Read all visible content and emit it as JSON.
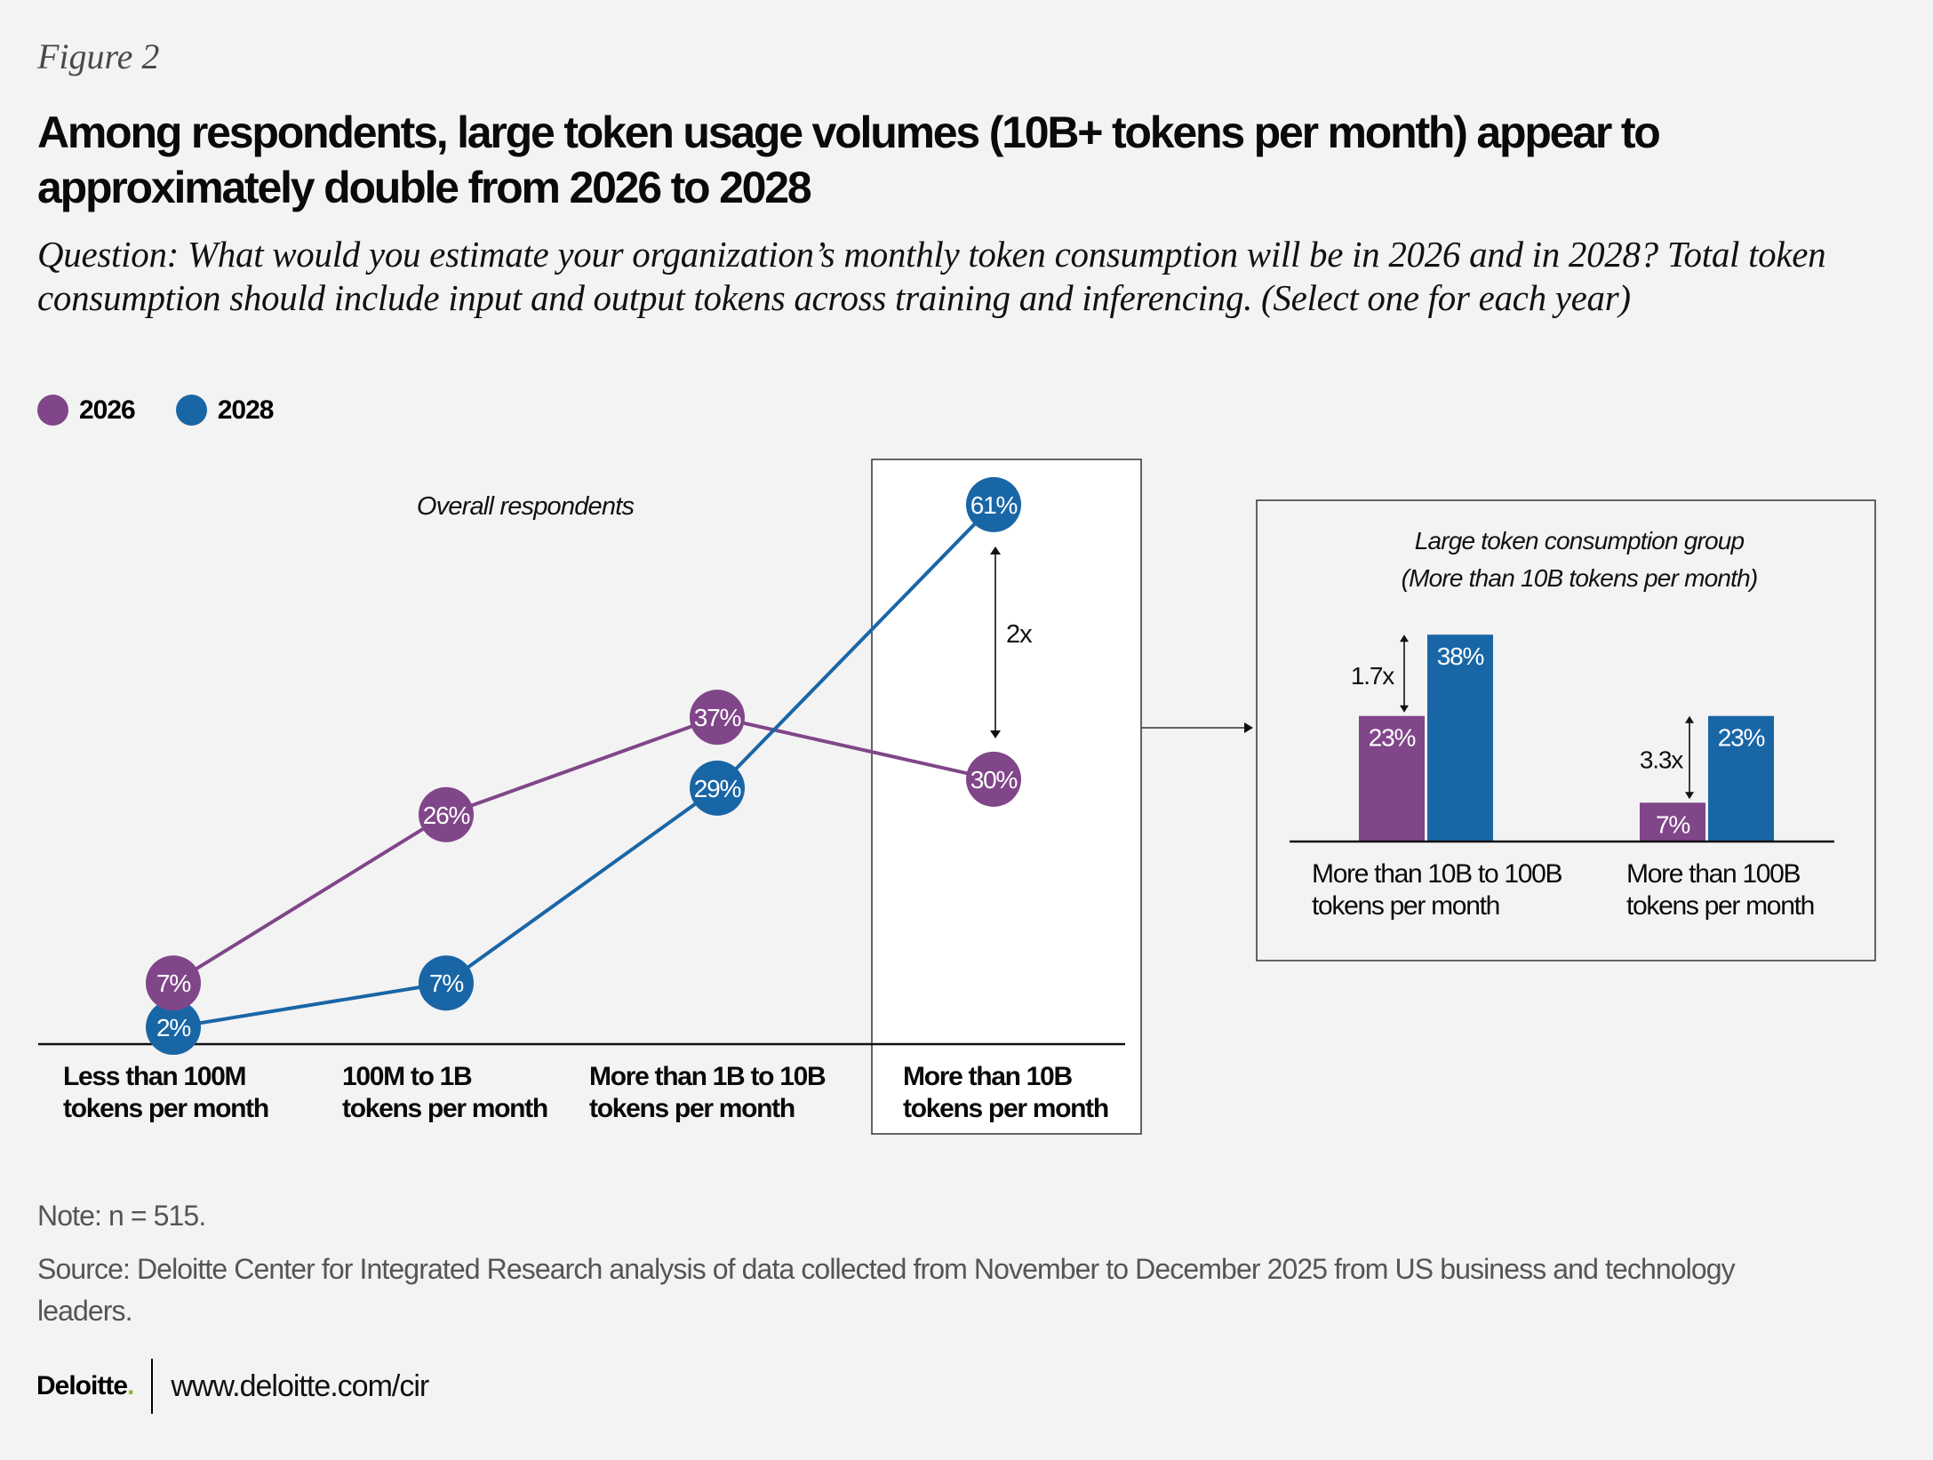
{
  "figure_label": "Figure 2",
  "title": "Among respondents, large token usage volumes (10B+ tokens per month) appear to approximately double from 2026 to 2028",
  "question": "Question: What would you estimate your organization’s monthly token consumption will be in 2026 and in 2028? Total token consumption should include input and output tokens across training and inferencing. (Select one for each year)",
  "legend": [
    {
      "label": "2026",
      "color": "#804689"
    },
    {
      "label": "2028",
      "color": "#1966a6"
    }
  ],
  "note": "Note: n = 515.",
  "source": "Source: Deloitte Center for Integrated Research analysis of data collected from November to December 2025 from US business and technology leaders.",
  "footer": {
    "logo": "Deloitte",
    "logo_dot": ".",
    "url": "www.deloitte.com/cir"
  },
  "chart_data": [
    {
      "type": "line",
      "title": "Overall respondents",
      "categories": [
        [
          "Less than 100M",
          "tokens per month"
        ],
        [
          "100M to 1B",
          "tokens per month"
        ],
        [
          "More than 1B to 10B",
          "tokens per month"
        ],
        [
          "More than 10B",
          "tokens per month"
        ]
      ],
      "series": [
        {
          "name": "2026",
          "color": "#804689",
          "values": [
            7,
            26,
            37,
            30
          ],
          "labels": [
            "7%",
            "26%",
            "37%",
            "30%"
          ]
        },
        {
          "name": "2028",
          "color": "#1966a6",
          "values": [
            2,
            7,
            29,
            61
          ],
          "labels": [
            "2%",
            "7%",
            "29%",
            "61%"
          ]
        }
      ],
      "highlighted_category": "More than 10B tokens per month",
      "annotation": "2x",
      "xlabel": "",
      "ylabel": "",
      "ylim": [
        0,
        65
      ],
      "grid": false,
      "legend": "top-left"
    },
    {
      "type": "bar",
      "title": [
        "Large token consumption group",
        "(More than 10B tokens per month)"
      ],
      "categories": [
        [
          "More than 10B to 100B",
          "tokens per month"
        ],
        [
          "More than 100B",
          "tokens per month"
        ]
      ],
      "series": [
        {
          "name": "2026",
          "color": "#804689",
          "values": [
            23,
            7
          ],
          "labels": [
            "23%",
            "7%"
          ]
        },
        {
          "name": "2028",
          "color": "#1966a6",
          "values": [
            38,
            23
          ],
          "labels": [
            "38%",
            "23%"
          ]
        }
      ],
      "annotations": [
        "1.7x",
        "3.3x"
      ],
      "xlabel": "",
      "ylabel": "",
      "ylim": [
        0,
        40
      ],
      "grid": false
    }
  ]
}
